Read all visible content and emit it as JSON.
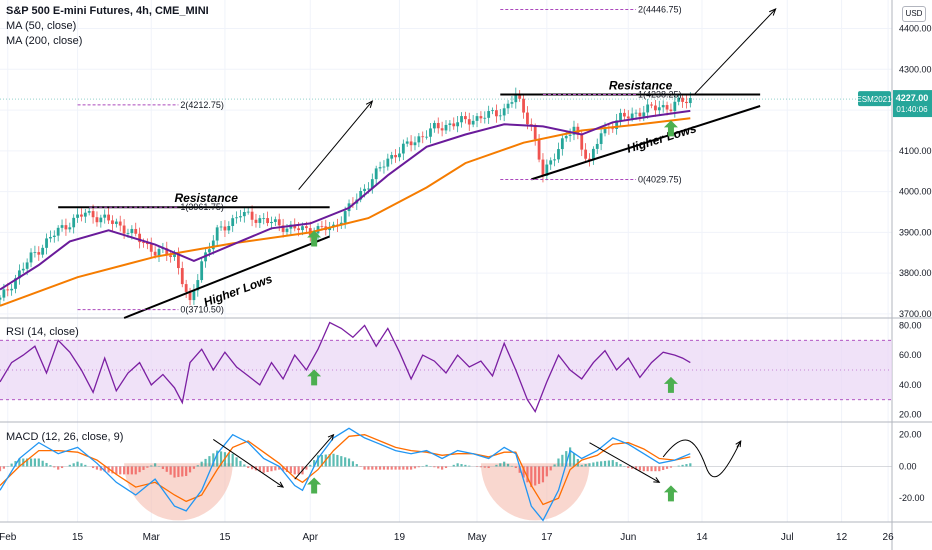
{
  "legend": {
    "title": "S&P 500 E-mini Futures, 4h, CME_MINI",
    "ma50": "MA (50, close)",
    "ma200": "MA (200, close)"
  },
  "currency": "USD",
  "rsi_label": "RSI (14, close)",
  "macd_label": "MACD (12, 26, close, 9)",
  "price_badge": {
    "symbol": "ESM2021",
    "price": "4227.00",
    "countdown": "01:40:06",
    "color": "#26a69a"
  },
  "colors": {
    "ma50": "#6a1b9a",
    "ma200": "#f57c00",
    "rsi": "#7b1fa2",
    "macd": "#2196f3",
    "signal": "#ff6d00",
    "arrow_up": "#4caf50",
    "fib": "#ab47bc",
    "rsi_band": "#e9d5f5",
    "hist_pos": "#26a69a",
    "hist_neg": "#ef5350",
    "bowl": "#f4b6a8"
  },
  "chart_data": [
    {
      "type": "candlestick",
      "x_ticks": [
        "Feb",
        "15",
        "Mar",
        "15",
        "Apr",
        "19",
        "May",
        "17",
        "Jun",
        "14",
        "Jul",
        "12",
        "26"
      ],
      "y_ticks": [
        "4400.00",
        "4300.00",
        "4200.00",
        "4100.00",
        "4000.00",
        "3900.00",
        "3800.00",
        "3700.00"
      ],
      "ylim": [
        3690,
        4470
      ],
      "close_path": [
        [
          0,
          3735
        ],
        [
          8,
          3840
        ],
        [
          15,
          3905
        ],
        [
          22,
          3948
        ],
        [
          30,
          3922
        ],
        [
          35,
          3890
        ],
        [
          40,
          3852
        ],
        [
          45,
          3845
        ],
        [
          49,
          3720
        ],
        [
          52,
          3830
        ],
        [
          56,
          3900
        ],
        [
          62,
          3945
        ],
        [
          68,
          3930
        ],
        [
          74,
          3912
        ],
        [
          80,
          3905
        ],
        [
          86,
          3912
        ],
        [
          90,
          3960
        ],
        [
          95,
          4020
        ],
        [
          100,
          4080
        ],
        [
          106,
          4120
        ],
        [
          112,
          4155
        ],
        [
          118,
          4170
        ],
        [
          124,
          4182
        ],
        [
          130,
          4200
        ],
        [
          133,
          4236
        ],
        [
          137,
          4160
        ],
        [
          140,
          4040
        ],
        [
          144,
          4110
        ],
        [
          148,
          4155
        ],
        [
          152,
          4070
        ],
        [
          155,
          4145
        ],
        [
          160,
          4180
        ],
        [
          166,
          4198
        ],
        [
          170,
          4210
        ],
        [
          173,
          4205
        ],
        [
          176,
          4225
        ],
        [
          178,
          4227
        ]
      ],
      "series": [
        {
          "name": "MA (50, close)",
          "path": [
            [
              0,
              3760
            ],
            [
              10,
              3820
            ],
            [
              18,
              3878
            ],
            [
              28,
              3905
            ],
            [
              40,
              3870
            ],
            [
              50,
              3830
            ],
            [
              60,
              3870
            ],
            [
              70,
              3910
            ],
            [
              80,
              3922
            ],
            [
              90,
              3960
            ],
            [
              100,
              4040
            ],
            [
              110,
              4110
            ],
            [
              120,
              4140
            ],
            [
              130,
              4165
            ],
            [
              140,
              4160
            ],
            [
              150,
              4140
            ],
            [
              158,
              4170
            ],
            [
              168,
              4185
            ],
            [
              178,
              4198
            ]
          ]
        },
        {
          "name": "MA (200, close)",
          "path": [
            [
              0,
              3720
            ],
            [
              20,
              3790
            ],
            [
              40,
              3840
            ],
            [
              60,
              3873
            ],
            [
              80,
              3900
            ],
            [
              95,
              3935
            ],
            [
              110,
              4010
            ],
            [
              120,
              4070
            ],
            [
              135,
              4120
            ],
            [
              150,
              4150
            ],
            [
              165,
              4165
            ],
            [
              178,
              4180
            ]
          ]
        }
      ],
      "annotations": {
        "resistance_label": "Resistance",
        "higher_lows_label": "Higher Lows",
        "fib_1_feb": "1(3961.75)",
        "fib_0_feb": "0(3710.50)",
        "fib_2_feb": "2(4212.75)",
        "fib_1_may": "1(4238.25)",
        "fib_0_may": "0(4029.75)",
        "fib_2_may": "2(4446.75)",
        "resistance_1": [
          [
            15,
            3961.75
          ],
          [
            85,
            3961.75
          ]
        ],
        "higher_lows_1": [
          [
            32,
            3690
          ],
          [
            85,
            3890
          ]
        ],
        "resistance_2": [
          [
            129,
            4238.25
          ],
          [
            196,
            4238.25
          ]
        ],
        "higher_lows_2": [
          [
            137,
            4030
          ],
          [
            196,
            4210
          ]
        ],
        "projection_1": [
          [
            77,
            4005
          ],
          [
            96,
            4222
          ]
        ],
        "projection_2": [
          [
            179,
            4238
          ],
          [
            200,
            4448
          ]
        ],
        "up_arrows": [
          [
            81,
            3885
          ],
          [
            173,
            4155
          ]
        ]
      }
    },
    {
      "type": "line",
      "ylim": [
        15,
        85
      ],
      "y_ticks": [
        "80.00",
        "60.00",
        "40.00",
        "20.00"
      ],
      "bands": [
        30,
        70
      ],
      "series": [
        {
          "name": "RSI",
          "path": [
            [
              0,
              42
            ],
            [
              3,
              55
            ],
            [
              6,
              60
            ],
            [
              9,
              66
            ],
            [
              12,
              48
            ],
            [
              15,
              70
            ],
            [
              18,
              62
            ],
            [
              21,
              50
            ],
            [
              24,
              35
            ],
            [
              27,
              58
            ],
            [
              30,
              36
            ],
            [
              33,
              48
            ],
            [
              36,
              55
            ],
            [
              39,
              40
            ],
            [
              42,
              47
            ],
            [
              45,
              38
            ],
            [
              47,
              28
            ],
            [
              49,
              55
            ],
            [
              52,
              64
            ],
            [
              55,
              50
            ],
            [
              58,
              62
            ],
            [
              61,
              52
            ],
            [
              64,
              46
            ],
            [
              67,
              40
            ],
            [
              70,
              55
            ],
            [
              73,
              44
            ],
            [
              76,
              60
            ],
            [
              79,
              50
            ],
            [
              82,
              64
            ],
            [
              85,
              82
            ],
            [
              88,
              78
            ],
            [
              91,
              72
            ],
            [
              94,
              80
            ],
            [
              97,
              66
            ],
            [
              100,
              78
            ],
            [
              103,
              62
            ],
            [
              106,
              44
            ],
            [
              109,
              60
            ],
            [
              112,
              56
            ],
            [
              115,
              48
            ],
            [
              118,
              60
            ],
            [
              121,
              52
            ],
            [
              124,
              56
            ],
            [
              127,
              46
            ],
            [
              130,
              68
            ],
            [
              133,
              50
            ],
            [
              136,
              30
            ],
            [
              138,
              22
            ],
            [
              141,
              42
            ],
            [
              144,
              60
            ],
            [
              147,
              50
            ],
            [
              150,
              44
            ],
            [
              153,
              55
            ],
            [
              156,
              63
            ],
            [
              159,
              50
            ],
            [
              162,
              58
            ],
            [
              165,
              45
            ],
            [
              168,
              55
            ],
            [
              171,
              62
            ],
            [
              174,
              60
            ],
            [
              176,
              58
            ],
            [
              178,
              55
            ]
          ]
        }
      ],
      "up_arrows": [
        [
          81,
          45
        ],
        [
          173,
          40
        ]
      ]
    },
    {
      "type": "line",
      "ylim": [
        -35,
        28
      ],
      "y_ticks": [
        "20.00",
        "0.00",
        "-20.00"
      ],
      "series": [
        {
          "name": "MACD",
          "path": [
            [
              0,
              -15
            ],
            [
              5,
              5
            ],
            [
              10,
              15
            ],
            [
              15,
              8
            ],
            [
              20,
              12
            ],
            [
              25,
              2
            ],
            [
              30,
              -10
            ],
            [
              35,
              -18
            ],
            [
              40,
              -8
            ],
            [
              45,
              -25
            ],
            [
              48,
              -28
            ],
            [
              52,
              -15
            ],
            [
              56,
              8
            ],
            [
              60,
              20
            ],
            [
              64,
              15
            ],
            [
              68,
              5
            ],
            [
              72,
              0
            ],
            [
              76,
              -12
            ],
            [
              78,
              -15
            ],
            [
              82,
              5
            ],
            [
              86,
              18
            ],
            [
              90,
              24
            ],
            [
              94,
              18
            ],
            [
              98,
              14
            ],
            [
              102,
              10
            ],
            [
              106,
              8
            ],
            [
              110,
              10
            ],
            [
              114,
              5
            ],
            [
              118,
              10
            ],
            [
              122,
              8
            ],
            [
              126,
              5
            ],
            [
              130,
              12
            ],
            [
              133,
              8
            ],
            [
              137,
              -25
            ],
            [
              140,
              -34
            ],
            [
              144,
              -15
            ],
            [
              147,
              10
            ],
            [
              150,
              5
            ],
            [
              154,
              10
            ],
            [
              158,
              18
            ],
            [
              162,
              14
            ],
            [
              166,
              8
            ],
            [
              170,
              2
            ],
            [
              174,
              4
            ],
            [
              178,
              8
            ]
          ]
        },
        {
          "name": "Signal",
          "path": [
            [
              0,
              -12
            ],
            [
              5,
              0
            ],
            [
              10,
              10
            ],
            [
              15,
              10
            ],
            [
              20,
              9
            ],
            [
              25,
              4
            ],
            [
              30,
              -5
            ],
            [
              35,
              -13
            ],
            [
              40,
              -10
            ],
            [
              45,
              -18
            ],
            [
              48,
              -22
            ],
            [
              52,
              -18
            ],
            [
              56,
              -2
            ],
            [
              60,
              12
            ],
            [
              64,
              16
            ],
            [
              68,
              9
            ],
            [
              72,
              2
            ],
            [
              76,
              -7
            ],
            [
              78,
              -10
            ],
            [
              82,
              -2
            ],
            [
              86,
              10
            ],
            [
              90,
              19
            ],
            [
              94,
              20
            ],
            [
              98,
              16
            ],
            [
              102,
              12
            ],
            [
              106,
              10
            ],
            [
              110,
              9
            ],
            [
              114,
              7
            ],
            [
              118,
              8
            ],
            [
              122,
              8
            ],
            [
              126,
              6
            ],
            [
              130,
              9
            ],
            [
              133,
              9
            ],
            [
              137,
              -12
            ],
            [
              140,
              -24
            ],
            [
              144,
              -20
            ],
            [
              147,
              -2
            ],
            [
              150,
              4
            ],
            [
              154,
              7
            ],
            [
              158,
              14
            ],
            [
              162,
              15
            ],
            [
              166,
              11
            ],
            [
              170,
              5
            ],
            [
              174,
              4
            ],
            [
              178,
              6
            ]
          ]
        }
      ],
      "up_arrows": [
        [
          81,
          -12
        ],
        [
          173,
          -17
        ]
      ]
    }
  ]
}
